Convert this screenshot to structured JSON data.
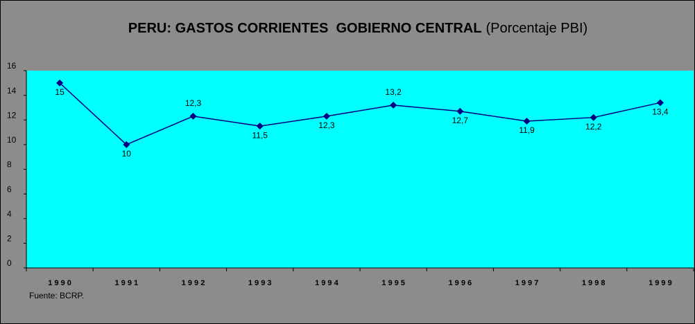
{
  "chart_data": {
    "type": "line",
    "title": "PERU: GASTOS CORRIENTES  GOBIERNO CENTRAL",
    "subtitle": "(Porcentaje PBI)",
    "source": "Fuente: BCRP.",
    "categories": [
      "1 9 9 0",
      "1 9 9 1",
      "1 9 9 2",
      "1 9 9 3",
      "1 9 9 4",
      "1 9 9 5",
      "1 9 9 6",
      "1 9 9 7",
      "1 9 9 8",
      "1 9 9 9"
    ],
    "series": [
      {
        "name": "Gastos corrientes",
        "color": "#000080",
        "values": [
          15,
          10,
          12.3,
          11.5,
          12.3,
          13.2,
          12.7,
          11.9,
          12.2,
          13.4
        ],
        "value_labels": [
          "15",
          "10",
          "12,3",
          "11,5",
          "12,3",
          "13,2",
          "12,7",
          "11,9",
          "12,2",
          "13,4"
        ]
      }
    ],
    "ylim": [
      0,
      16
    ],
    "yticks": [
      0,
      2,
      4,
      6,
      8,
      10,
      12,
      14,
      16
    ],
    "plot_background": "#00ffff",
    "background": "#8c8c8c",
    "grid": false
  }
}
